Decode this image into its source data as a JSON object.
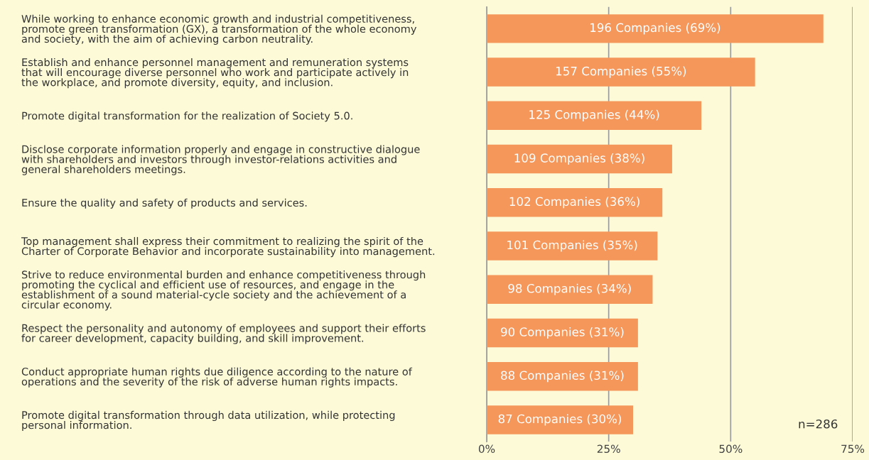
{
  "chart_data": {
    "type": "bar",
    "orientation": "horizontal",
    "categories": [
      "While working to enhance economic growth and industrial competitiveness,\npromote green transformation (GX), a transformation of the whole economy\nand society, with the aim of achieving carbon neutrality.",
      "Establish and enhance personnel management and remuneration systems\nthat will encourage diverse personnel who work and participate actively in\nthe workplace, and promote diversity, equity, and inclusion.",
      "Promote digital transformation for the realization of Society 5.0.",
      "Disclose corporate information properly and engage in constructive dialogue\nwith shareholders and investors through investor-relations activities and\ngeneral shareholders meetings.",
      "Ensure the quality and safety of products and services.",
      "Top management shall express their commitment to realizing the spirit of the\nCharter of Corporate Behavior and incorporate sustainability into management.",
      "Strive to reduce environmental burden and enhance competitiveness through\npromoting the cyclical and efficient use of resources, and engage in the\nestablishment of a sound material-cycle society and the achievement of a\ncircular economy.",
      "Respect the personality and autonomy of employees and support their efforts\nfor career development, capacity building, and skill improvement.",
      "Conduct appropriate human rights due diligence according to the nature of\noperations and the severity of the risk of adverse human rights impacts.",
      "Promote digital transformation through data utilization, while protecting\npersonal information."
    ],
    "values": [
      69,
      55,
      44,
      38,
      36,
      35,
      34,
      31,
      31,
      30
    ],
    "value_labels": [
      "196 Companies (69%)",
      "157 Companies (55%)",
      "125 Companies (44%)",
      "109 Companies (38%)",
      "102 Companies (36%)",
      "101 Companies (35%)",
      "98 Companies (34%)",
      "90 Companies (31%)",
      "88 Companies (31%)",
      "87 Companies (30%)"
    ],
    "color": "#f5975a",
    "xlim": [
      0,
      75
    ],
    "xticks": [
      {
        "value": 0,
        "label": "0%"
      },
      {
        "value": 25,
        "label": "25%"
      },
      {
        "value": 50,
        "label": "50%"
      },
      {
        "value": 75,
        "label": "75%"
      }
    ],
    "grid": "x",
    "legend": false,
    "annotations": [
      "n=286"
    ]
  }
}
